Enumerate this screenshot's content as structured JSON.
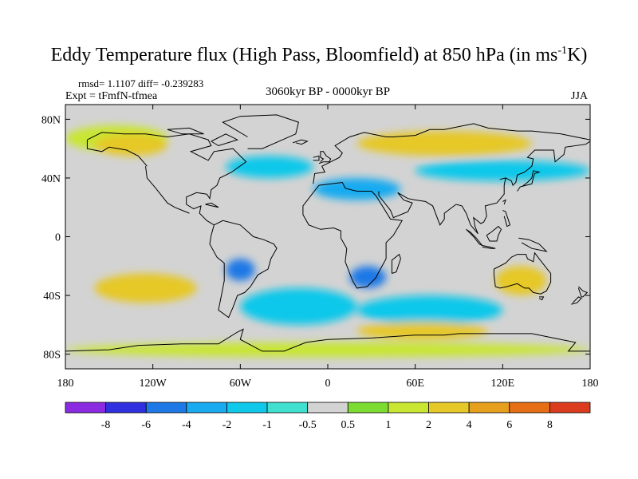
{
  "title": {
    "main": "Eddy Temperature flux (High Pass, Bloomfield) at 850 hPa (in ms",
    "sup": "-1",
    "end": "K)"
  },
  "stats_line": "rmsd= 1.1107 diff= -0.239283",
  "expt_line": "Expt = tFmfN-tfmea",
  "period_line": "3060kyr BP - 0000kyr BP",
  "season": "JJA",
  "map": {
    "projection": "cylindrical-equidistant",
    "lon_range": [
      -180,
      180
    ],
    "lat_range": [
      -90,
      90
    ],
    "ocean_background": "#d3d3d3",
    "coastline_color": "#000000"
  },
  "axes": {
    "y_ticks": [
      {
        "label": "80N",
        "lat": 80
      },
      {
        "label": "40N",
        "lat": 40
      },
      {
        "label": "0",
        "lat": 0
      },
      {
        "label": "40S",
        "lat": -40
      },
      {
        "label": "80S",
        "lat": -80
      }
    ],
    "x_ticks": [
      {
        "label": "180",
        "lon": -180
      },
      {
        "label": "120W",
        "lon": -120
      },
      {
        "label": "60W",
        "lon": -60
      },
      {
        "label": "0",
        "lon": 0
      },
      {
        "label": "60E",
        "lon": 60
      },
      {
        "label": "120E",
        "lon": 120
      },
      {
        "label": "180",
        "lon": 180
      }
    ]
  },
  "colorbar": {
    "colors": [
      "#8a2be2",
      "#3030e0",
      "#1e78e6",
      "#19aaf0",
      "#10c8ea",
      "#40e0d0",
      "#d3d3d3",
      "#7cdc32",
      "#c8e632",
      "#e6c828",
      "#e6a01e",
      "#e66e14",
      "#dc3c1e"
    ],
    "labels": [
      "-8",
      "-6",
      "-4",
      "-2",
      "-1",
      "-0.5",
      "0.5",
      "1",
      "2",
      "4",
      "6",
      "8"
    ]
  },
  "chart_data": {
    "type": "heatmap",
    "title": "Eddy Temperature flux (High Pass, Bloomfield) at 850 hPa (in ms-1K)",
    "units": "ms-1K",
    "levels": [
      -8,
      -6,
      -4,
      -2,
      -1,
      -0.5,
      0.5,
      1,
      2,
      4,
      6,
      8
    ],
    "anomaly_regions": [
      {
        "region": "North Pacific 60-75N",
        "lon": [
          -180,
          -110
        ],
        "lat": [
          58,
          76
        ],
        "value": 1.5
      },
      {
        "region": "Alaska / NW Canada",
        "lon": [
          -160,
          -110
        ],
        "lat": [
          55,
          70
        ],
        "value": 2.5
      },
      {
        "region": "Northern Eurasia",
        "lon": [
          20,
          140
        ],
        "lat": [
          55,
          72
        ],
        "value": 3
      },
      {
        "region": "North Atlantic",
        "lon": [
          -70,
          -10
        ],
        "lat": [
          40,
          55
        ],
        "value": -1.5
      },
      {
        "region": "Central Asia 40N",
        "lon": [
          60,
          180
        ],
        "lat": [
          38,
          52
        ],
        "value": -1.2
      },
      {
        "region": "Eastern Mediterranean",
        "lon": [
          -10,
          50
        ],
        "lat": [
          25,
          40
        ],
        "value": -2.5
      },
      {
        "region": "South Pacific 40S",
        "lon": [
          -160,
          -90
        ],
        "lat": [
          -45,
          -25
        ],
        "value": 3
      },
      {
        "region": "South America",
        "lon": [
          -70,
          -50
        ],
        "lat": [
          -30,
          -15
        ],
        "value": -6
      },
      {
        "region": "South Atlantic",
        "lon": [
          -60,
          20
        ],
        "lat": [
          -60,
          -35
        ],
        "value": -2
      },
      {
        "region": "Southern Africa",
        "lon": [
          15,
          40
        ],
        "lat": [
          -35,
          -20
        ],
        "value": -5
      },
      {
        "region": "South Indian Ocean",
        "lon": [
          20,
          120
        ],
        "lat": [
          -60,
          -40
        ],
        "value": -2
      },
      {
        "region": "Southern Ocean 65S",
        "lon": [
          20,
          110
        ],
        "lat": [
          -70,
          -58
        ],
        "value": 3
      },
      {
        "region": "Australia",
        "lon": [
          115,
          150
        ],
        "lat": [
          -40,
          -20
        ],
        "value": 2
      },
      {
        "region": "Antarctic coast",
        "lon": [
          -180,
          180
        ],
        "lat": [
          -82,
          -72
        ],
        "value": 1
      }
    ]
  }
}
